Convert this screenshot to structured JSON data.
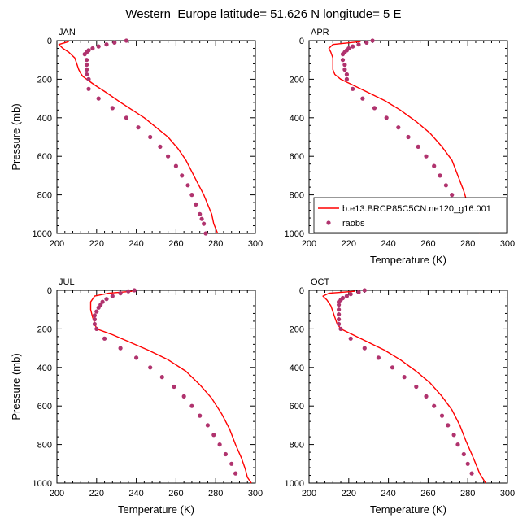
{
  "figure": {
    "title": "Western_Europe  latitude= 51.626 N longitude= 5 E"
  },
  "legend": {
    "model_label": "b.e13.BRCP85C5CN.ne120_g16.001",
    "obs_label": "raobs",
    "model_color": "#ff0000",
    "obs_color": "#b0336e"
  },
  "chart_data": [
    {
      "type": "line",
      "title": "JAN",
      "xlabel": "Temperature (K)",
      "ylabel": "Pressure (mb)",
      "xlim": [
        200,
        300
      ],
      "ylim": [
        0,
        1000
      ],
      "y_inverted": true,
      "xticks": [
        "200",
        "220",
        "240",
        "260",
        "280",
        "300"
      ],
      "yticks": [
        "0",
        "200",
        "400",
        "600",
        "800",
        "1000"
      ],
      "show_xlabel": false,
      "show_ylabel": true,
      "series": [
        {
          "name": "b.e13.BRCP85C5CN.ne120_g16.001",
          "kind": "line",
          "points": [
            [
              206,
              5
            ],
            [
              201,
              20
            ],
            [
              203,
              40
            ],
            [
              206,
              60
            ],
            [
              209,
              90
            ],
            [
              210,
              120
            ],
            [
              211,
              150
            ],
            [
              212,
              170
            ],
            [
              213,
              185
            ],
            [
              215,
              200
            ],
            [
              219,
              230
            ],
            [
              225,
              270
            ],
            [
              232,
              320
            ],
            [
              238,
              360
            ],
            [
              244,
              400
            ],
            [
              250,
              450
            ],
            [
              256,
              500
            ],
            [
              261,
              560
            ],
            [
              265,
              620
            ],
            [
              268,
              680
            ],
            [
              271,
              740
            ],
            [
              274,
              800
            ],
            [
              276,
              850
            ],
            [
              278,
              900
            ],
            [
              279,
              950
            ],
            [
              281,
              1000
            ]
          ]
        },
        {
          "name": "raobs",
          "kind": "scatter",
          "points": [
            [
              235,
              0
            ],
            [
              229,
              10
            ],
            [
              225,
              20
            ],
            [
              221,
              30
            ],
            [
              218,
              40
            ],
            [
              216,
              50
            ],
            [
              215,
              60
            ],
            [
              214,
              70
            ],
            [
              215,
              100
            ],
            [
              215,
              125
            ],
            [
              215,
              150
            ],
            [
              215,
              175
            ],
            [
              216,
              200
            ],
            [
              216,
              250
            ],
            [
              221,
              300
            ],
            [
              228,
              350
            ],
            [
              235,
              400
            ],
            [
              241,
              450
            ],
            [
              247,
              500
            ],
            [
              252,
              550
            ],
            [
              256,
              600
            ],
            [
              260,
              650
            ],
            [
              263,
              700
            ],
            [
              266,
              750
            ],
            [
              268,
              800
            ],
            [
              270,
              850
            ],
            [
              272,
              900
            ],
            [
              273,
              925
            ],
            [
              274,
              950
            ],
            [
              275,
              1000
            ]
          ]
        }
      ]
    },
    {
      "type": "line",
      "title": "APR",
      "xlabel": "Temperature (K)",
      "ylabel": "Pressure (mb)",
      "xlim": [
        200,
        300
      ],
      "ylim": [
        0,
        1000
      ],
      "y_inverted": true,
      "xticks": [
        "200",
        "220",
        "240",
        "260",
        "280",
        "300"
      ],
      "yticks": [
        "0",
        "200",
        "400",
        "600",
        "800",
        "1000"
      ],
      "show_xlabel": true,
      "show_ylabel": false,
      "series": [
        {
          "name": "b.e13.BRCP85C5CN.ne120_g16.001",
          "kind": "line",
          "points": [
            [
              226,
              5
            ],
            [
              212,
              20
            ],
            [
              210,
              40
            ],
            [
              211,
              60
            ],
            [
              212,
              90
            ],
            [
              212,
              120
            ],
            [
              212,
              150
            ],
            [
              213,
              175
            ],
            [
              216,
              200
            ],
            [
              222,
              230
            ],
            [
              230,
              270
            ],
            [
              238,
              310
            ],
            [
              246,
              360
            ],
            [
              254,
              420
            ],
            [
              261,
              480
            ],
            [
              267,
              550
            ],
            [
              272,
              620
            ],
            [
              275,
              700
            ],
            [
              278,
              780
            ],
            [
              280,
              850
            ],
            [
              282,
              900
            ],
            [
              284,
              950
            ],
            [
              286,
              1000
            ]
          ]
        },
        {
          "name": "raobs",
          "kind": "scatter",
          "points": [
            [
              232,
              0
            ],
            [
              229,
              10
            ],
            [
              225,
              20
            ],
            [
              222,
              30
            ],
            [
              220,
              40
            ],
            [
              219,
              50
            ],
            [
              218,
              60
            ],
            [
              217,
              70
            ],
            [
              217,
              100
            ],
            [
              218,
              125
            ],
            [
              218,
              150
            ],
            [
              219,
              175
            ],
            [
              219,
              200
            ],
            [
              222,
              250
            ],
            [
              227,
              300
            ],
            [
              233,
              350
            ],
            [
              239,
              400
            ],
            [
              245,
              450
            ],
            [
              250,
              500
            ],
            [
              255,
              550
            ],
            [
              259,
              600
            ],
            [
              263,
              650
            ],
            [
              266,
              700
            ],
            [
              269,
              750
            ],
            [
              272,
              800
            ],
            [
              275,
              850
            ],
            [
              278,
              900
            ],
            [
              279,
              925
            ],
            [
              281,
              950
            ]
          ]
        }
      ]
    },
    {
      "type": "line",
      "title": "JUL",
      "xlabel": "Temperature (K)",
      "ylabel": "Pressure (mb)",
      "xlim": [
        200,
        300
      ],
      "ylim": [
        0,
        1000
      ],
      "y_inverted": true,
      "xticks": [
        "200",
        "220",
        "240",
        "260",
        "280",
        "300"
      ],
      "yticks": [
        "0",
        "200",
        "400",
        "600",
        "800",
        "1000"
      ],
      "show_xlabel": true,
      "show_ylabel": true,
      "series": [
        {
          "name": "b.e13.BRCP85C5CN.ne120_g16.001",
          "kind": "line",
          "points": [
            [
              238,
              5
            ],
            [
              226,
              15
            ],
            [
              219,
              30
            ],
            [
              217,
              60
            ],
            [
              217,
              100
            ],
            [
              218,
              140
            ],
            [
              219,
              170
            ],
            [
              220,
              200
            ],
            [
              228,
              230
            ],
            [
              237,
              270
            ],
            [
              246,
              310
            ],
            [
              256,
              360
            ],
            [
              265,
              420
            ],
            [
              272,
              490
            ],
            [
              278,
              560
            ],
            [
              283,
              640
            ],
            [
              287,
              720
            ],
            [
              290,
              800
            ],
            [
              293,
              870
            ],
            [
              295,
              930
            ],
            [
              296,
              970
            ],
            [
              298,
              1000
            ]
          ]
        },
        {
          "name": "raobs",
          "kind": "scatter",
          "points": [
            [
              239,
              0
            ],
            [
              236,
              5
            ],
            [
              232,
              15
            ],
            [
              228,
              30
            ],
            [
              225,
              45
            ],
            [
              223,
              60
            ],
            [
              222,
              75
            ],
            [
              221,
              90
            ],
            [
              220,
              110
            ],
            [
              219,
              130
            ],
            [
              219,
              150
            ],
            [
              219,
              175
            ],
            [
              220,
              200
            ],
            [
              224,
              250
            ],
            [
              232,
              300
            ],
            [
              240,
              350
            ],
            [
              247,
              400
            ],
            [
              253,
              450
            ],
            [
              259,
              500
            ],
            [
              264,
              550
            ],
            [
              268,
              600
            ],
            [
              272,
              650
            ],
            [
              276,
              700
            ],
            [
              279,
              750
            ],
            [
              282,
              800
            ],
            [
              285,
              850
            ],
            [
              288,
              900
            ],
            [
              290,
              950
            ]
          ]
        }
      ]
    },
    {
      "type": "line",
      "title": "OCT",
      "xlabel": "Temperature (K)",
      "ylabel": "Pressure (mb)",
      "xlim": [
        200,
        300
      ],
      "ylim": [
        0,
        1000
      ],
      "y_inverted": true,
      "xticks": [
        "200",
        "220",
        "240",
        "260",
        "280",
        "300"
      ],
      "yticks": [
        "0",
        "200",
        "400",
        "600",
        "800",
        "1000"
      ],
      "show_xlabel": true,
      "show_ylabel": false,
      "series": [
        {
          "name": "b.e13.BRCP85C5CN.ne120_g16.001",
          "kind": "line",
          "points": [
            [
              223,
              5
            ],
            [
              210,
              15
            ],
            [
              207,
              30
            ],
            [
              209,
              50
            ],
            [
              211,
              80
            ],
            [
              212,
              110
            ],
            [
              213,
              140
            ],
            [
              214,
              170
            ],
            [
              216,
              200
            ],
            [
              222,
              230
            ],
            [
              230,
              270
            ],
            [
              238,
              310
            ],
            [
              246,
              360
            ],
            [
              254,
              420
            ],
            [
              261,
              480
            ],
            [
              267,
              550
            ],
            [
              272,
              620
            ],
            [
              276,
              700
            ],
            [
              279,
              780
            ],
            [
              282,
              850
            ],
            [
              284,
              900
            ],
            [
              286,
              950
            ],
            [
              289,
              1000
            ]
          ]
        },
        {
          "name": "raobs",
          "kind": "scatter",
          "points": [
            [
              228,
              0
            ],
            [
              225,
              10
            ],
            [
              221,
              20
            ],
            [
              219,
              30
            ],
            [
              217,
              40
            ],
            [
              216,
              50
            ],
            [
              215,
              60
            ],
            [
              215,
              75
            ],
            [
              215,
              100
            ],
            [
              215,
              125
            ],
            [
              215,
              150
            ],
            [
              215,
              175
            ],
            [
              216,
              200
            ],
            [
              221,
              250
            ],
            [
              228,
              300
            ],
            [
              235,
              350
            ],
            [
              242,
              400
            ],
            [
              248,
              450
            ],
            [
              254,
              500
            ],
            [
              259,
              550
            ],
            [
              263,
              600
            ],
            [
              267,
              650
            ],
            [
              270,
              700
            ],
            [
              273,
              750
            ],
            [
              275,
              800
            ],
            [
              278,
              850
            ],
            [
              280,
              900
            ],
            [
              282,
              950
            ]
          ]
        }
      ]
    }
  ]
}
